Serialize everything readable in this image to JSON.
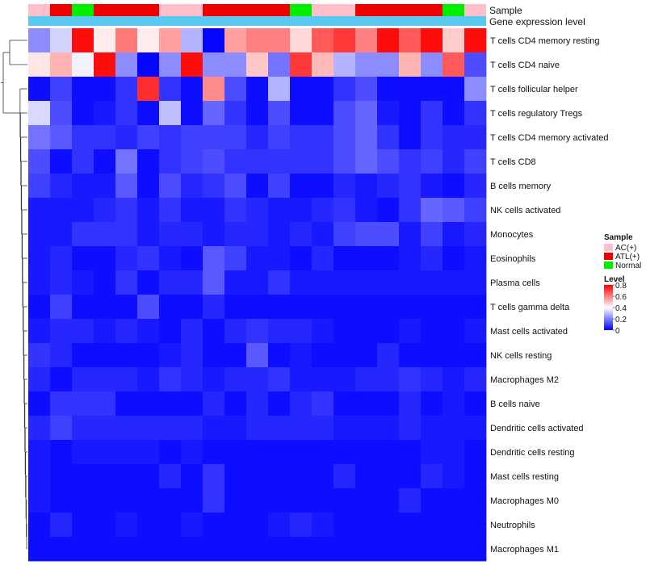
{
  "chart_data": {
    "type": "heatmap",
    "title": "",
    "annotation_labels": [
      "Sample",
      "Gene expression level"
    ],
    "column_samples": [
      "AC(+)",
      "ATL(+)",
      "Normal",
      "ATL(+)",
      "ATL(+)",
      "ATL(+)",
      "AC(+)",
      "AC(+)",
      "ATL(+)",
      "ATL(+)",
      "ATL(+)",
      "ATL(+)",
      "Normal",
      "AC(+)",
      "AC(+)",
      "ATL(+)",
      "ATL(+)",
      "ATL(+)",
      "ATL(+)",
      "Normal",
      "AC(+)"
    ],
    "expression_track_color": "#5BC8F0",
    "rows": [
      "T cells CD4 memory resting",
      "T cells CD4 naive",
      "T cells follicular helper",
      "T cells regulatory  Tregs",
      "T cells CD4 memory activated",
      "T cells CD8",
      "B cells memory",
      "NK cells activated",
      "Monocytes",
      "Eosinophils",
      "Plasma cells",
      "T cells gamma delta",
      "Mast cells activated",
      "NK cells resting",
      "Macrophages M2",
      "B cells naive",
      "Dendritic cells activated",
      "Dendritic cells resting",
      "Mast cells resting",
      "Macrophages M0",
      "Neutrophils",
      "Macrophages M1"
    ],
    "values": [
      [
        0.22,
        0.33,
        0.78,
        0.43,
        0.61,
        0.43,
        0.55,
        0.28,
        0.01,
        0.55,
        0.6,
        0.6,
        0.46,
        0.66,
        0.71,
        0.6,
        0.78,
        0.66,
        0.78,
        0.48,
        0.78
      ],
      [
        0.44,
        0.52,
        0.38,
        0.78,
        0.22,
        0.01,
        0.22,
        0.78,
        0.22,
        0.22,
        0.49,
        0.18,
        0.71,
        0.51,
        0.28,
        0.22,
        0.22,
        0.52,
        0.22,
        0.66,
        0.12
      ],
      [
        0.02,
        0.1,
        0.02,
        0.02,
        0.08,
        0.73,
        0.08,
        0.02,
        0.58,
        0.12,
        0.02,
        0.28,
        0.02,
        0.02,
        0.08,
        0.12,
        0.02,
        0.02,
        0.02,
        0.02,
        0.22
      ],
      [
        0.34,
        0.12,
        0.02,
        0.04,
        0.08,
        0.02,
        0.3,
        0.02,
        0.16,
        0.08,
        0.02,
        0.12,
        0.02,
        0.02,
        0.12,
        0.16,
        0.04,
        0.02,
        0.08,
        0.02,
        0.08
      ],
      [
        0.18,
        0.14,
        0.08,
        0.08,
        0.06,
        0.1,
        0.08,
        0.1,
        0.1,
        0.1,
        0.06,
        0.1,
        0.08,
        0.08,
        0.12,
        0.16,
        0.08,
        0.02,
        0.08,
        0.06,
        0.06
      ],
      [
        0.12,
        0.02,
        0.08,
        0.02,
        0.18,
        0.02,
        0.08,
        0.1,
        0.12,
        0.08,
        0.08,
        0.08,
        0.08,
        0.08,
        0.12,
        0.16,
        0.12,
        0.08,
        0.1,
        0.06,
        0.1
      ],
      [
        0.1,
        0.06,
        0.04,
        0.04,
        0.14,
        0.02,
        0.12,
        0.06,
        0.08,
        0.12,
        0.02,
        0.1,
        0.02,
        0.02,
        0.06,
        0.04,
        0.06,
        0.08,
        0.04,
        0.02,
        0.06
      ],
      [
        0.04,
        0.04,
        0.04,
        0.06,
        0.08,
        0.04,
        0.08,
        0.04,
        0.04,
        0.08,
        0.06,
        0.04,
        0.04,
        0.06,
        0.08,
        0.04,
        0.02,
        0.08,
        0.16,
        0.14,
        0.1
      ],
      [
        0.04,
        0.04,
        0.08,
        0.08,
        0.08,
        0.04,
        0.06,
        0.06,
        0.04,
        0.06,
        0.06,
        0.04,
        0.06,
        0.04,
        0.1,
        0.12,
        0.12,
        0.04,
        0.1,
        0.04,
        0.06
      ],
      [
        0.04,
        0.06,
        0.02,
        0.02,
        0.06,
        0.08,
        0.04,
        0.02,
        0.14,
        0.1,
        0.04,
        0.04,
        0.02,
        0.06,
        0.02,
        0.02,
        0.02,
        0.04,
        0.06,
        0.02,
        0.04
      ],
      [
        0.04,
        0.06,
        0.04,
        0.02,
        0.08,
        0.02,
        0.06,
        0.06,
        0.14,
        0.04,
        0.04,
        0.08,
        0.04,
        0.04,
        0.04,
        0.04,
        0.04,
        0.04,
        0.04,
        0.04,
        0.04
      ],
      [
        0.02,
        0.1,
        0.02,
        0.02,
        0.02,
        0.12,
        0.02,
        0.02,
        0.06,
        0.02,
        0.02,
        0.02,
        0.02,
        0.02,
        0.02,
        0.02,
        0.02,
        0.02,
        0.02,
        0.02,
        0.02
      ],
      [
        0.04,
        0.06,
        0.06,
        0.04,
        0.06,
        0.04,
        0.02,
        0.06,
        0.02,
        0.06,
        0.08,
        0.06,
        0.06,
        0.04,
        0.02,
        0.02,
        0.02,
        0.04,
        0.02,
        0.02,
        0.04
      ],
      [
        0.08,
        0.06,
        0.02,
        0.02,
        0.02,
        0.02,
        0.04,
        0.06,
        0.02,
        0.02,
        0.14,
        0.02,
        0.04,
        0.02,
        0.02,
        0.02,
        0.06,
        0.02,
        0.02,
        0.02,
        0.02
      ],
      [
        0.06,
        0.02,
        0.06,
        0.06,
        0.06,
        0.04,
        0.08,
        0.06,
        0.04,
        0.06,
        0.06,
        0.08,
        0.04,
        0.04,
        0.04,
        0.06,
        0.06,
        0.08,
        0.06,
        0.04,
        0.06
      ],
      [
        0.02,
        0.08,
        0.08,
        0.08,
        0.02,
        0.02,
        0.02,
        0.02,
        0.06,
        0.02,
        0.06,
        0.02,
        0.06,
        0.08,
        0.02,
        0.02,
        0.02,
        0.06,
        0.02,
        0.04,
        0.02
      ],
      [
        0.06,
        0.1,
        0.06,
        0.06,
        0.06,
        0.06,
        0.06,
        0.06,
        0.04,
        0.04,
        0.06,
        0.06,
        0.06,
        0.06,
        0.04,
        0.04,
        0.04,
        0.06,
        0.04,
        0.04,
        0.04
      ],
      [
        0.04,
        0.02,
        0.04,
        0.04,
        0.04,
        0.04,
        0.02,
        0.04,
        0.02,
        0.02,
        0.02,
        0.02,
        0.02,
        0.02,
        0.02,
        0.02,
        0.02,
        0.02,
        0.04,
        0.04,
        0.02
      ],
      [
        0.04,
        0.02,
        0.02,
        0.02,
        0.02,
        0.02,
        0.06,
        0.02,
        0.08,
        0.02,
        0.02,
        0.02,
        0.02,
        0.02,
        0.06,
        0.02,
        0.02,
        0.02,
        0.06,
        0.04,
        0.02
      ],
      [
        0.04,
        0.02,
        0.02,
        0.02,
        0.02,
        0.02,
        0.02,
        0.02,
        0.08,
        0.02,
        0.02,
        0.02,
        0.02,
        0.02,
        0.02,
        0.02,
        0.02,
        0.06,
        0.02,
        0.02,
        0.02
      ],
      [
        0.02,
        0.06,
        0.02,
        0.02,
        0.04,
        0.02,
        0.02,
        0.04,
        0.02,
        0.02,
        0.02,
        0.04,
        0.06,
        0.04,
        0.02,
        0.02,
        0.02,
        0.02,
        0.02,
        0.02,
        0.02
      ],
      [
        0.02,
        0.02,
        0.02,
        0.02,
        0.02,
        0.02,
        0.02,
        0.02,
        0.02,
        0.02,
        0.02,
        0.02,
        0.02,
        0.02,
        0.02,
        0.02,
        0.02,
        0.02,
        0.02,
        0.02,
        0.02
      ]
    ],
    "value_range": [
      0,
      0.8
    ],
    "sample_legend": {
      "title": "Sample",
      "items": [
        {
          "label": "AC(+)",
          "color": "#FFC0CB"
        },
        {
          "label": "ATL(+)",
          "color": "#EE0000"
        },
        {
          "label": "Normal",
          "color": "#00EE00"
        }
      ]
    },
    "level_legend": {
      "title": "Level",
      "ticks": [
        "0.8",
        "0.6",
        "0.4",
        "0.2",
        "0"
      ],
      "tick_values": [
        0.8,
        0.6,
        0.4,
        0.2,
        0
      ],
      "colors": {
        "low": "#0000FF",
        "mid": "#FFFFFF",
        "high": "#FF0000"
      }
    }
  }
}
